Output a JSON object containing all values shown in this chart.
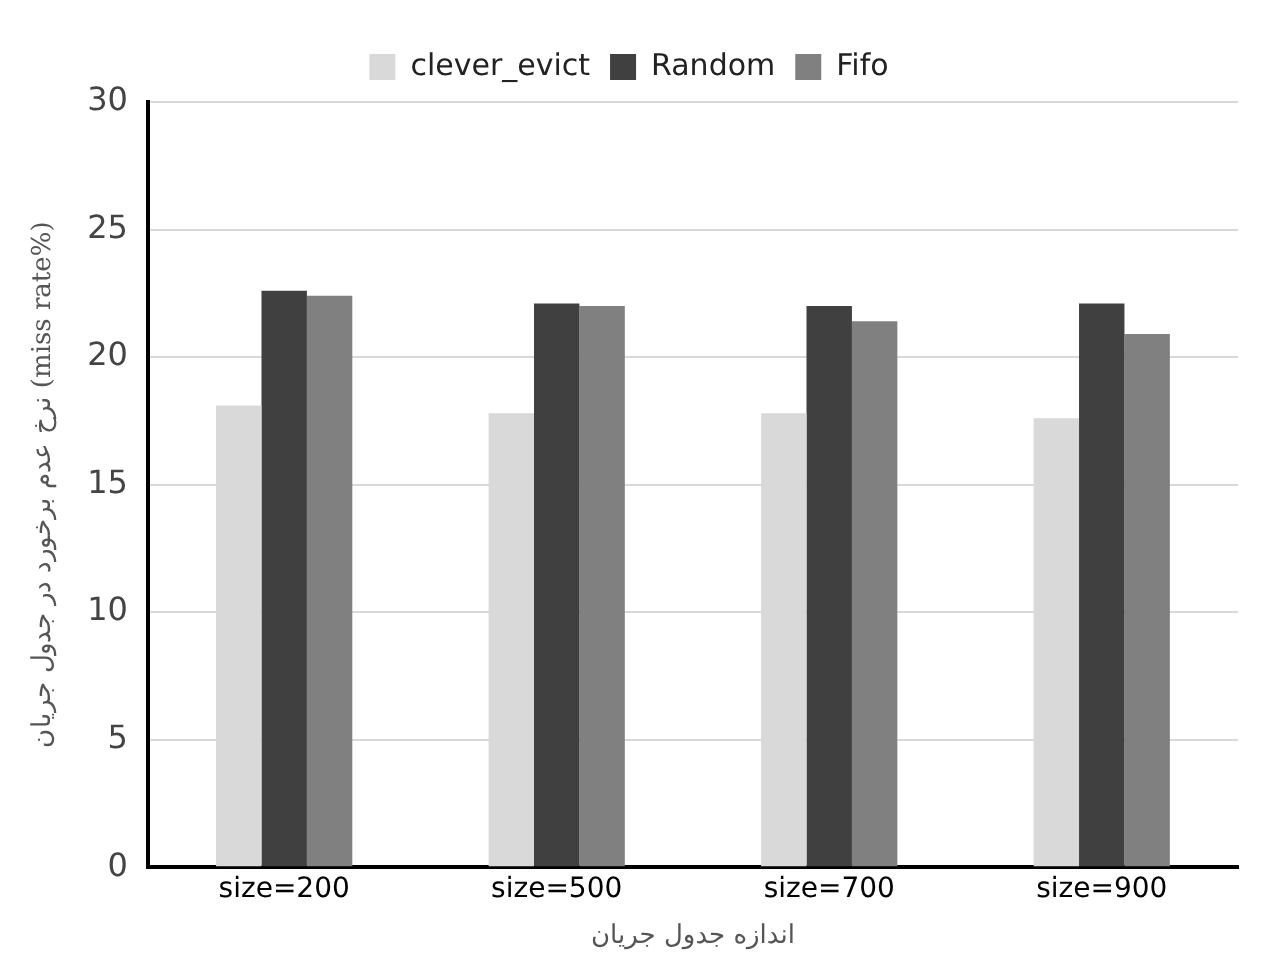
{
  "chart_data": {
    "type": "bar",
    "xlabel": "اندازه جدول جریان",
    "ylabel": "نرخ عدم برخورد در جدول جریان (miss rate%)",
    "categories": [
      "size=200",
      "size=500",
      "size=700",
      "size=900"
    ],
    "series": [
      {
        "name": "clever_evict",
        "color": "#d9d9d9",
        "values": [
          18.1,
          17.8,
          17.8,
          17.6
        ]
      },
      {
        "name": "Random",
        "color": "#404040",
        "values": [
          22.6,
          22.1,
          22.0,
          22.1
        ]
      },
      {
        "name": "Fifo",
        "color": "#808080",
        "values": [
          22.4,
          22.0,
          21.4,
          20.9
        ]
      }
    ],
    "ylim": [
      0,
      30
    ],
    "yticks": [
      0,
      5,
      10,
      15,
      20,
      25,
      30
    ],
    "grid": "y",
    "legend": "top"
  }
}
